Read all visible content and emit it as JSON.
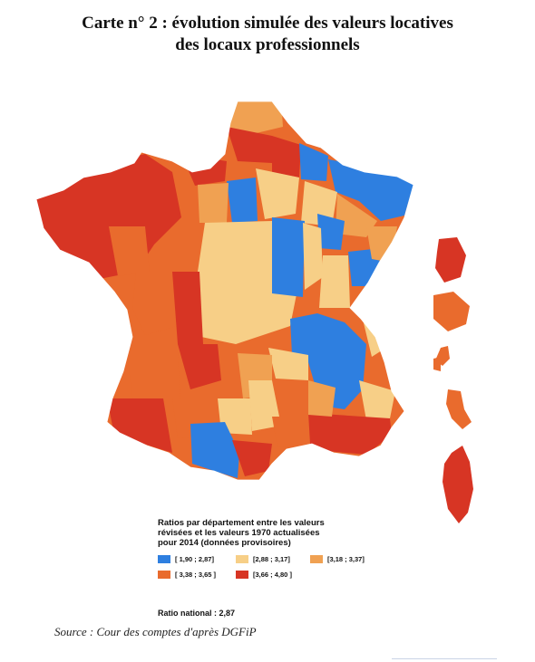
{
  "title": {
    "line1": "Carte n° 2 : évolution simulée des valeurs locatives",
    "line2": "des locaux professionnels"
  },
  "legend": {
    "title_line1": "Ratios par département entre les valeurs",
    "title_line2": "révisées et les valeurs 1970 actualisées",
    "title_line3": "pour 2014 (données provisoires)",
    "classes": [
      {
        "label": "[ 1,90 ; 2,87]",
        "color": "#2e7fe0"
      },
      {
        "label": "[2,88 ; 3,17]",
        "color": "#f7cf87"
      },
      {
        "label": "[3,18 ; 3,37]",
        "color": "#f0a152"
      },
      {
        "label": "[ 3,38 ; 3,65 ]",
        "color": "#e96b2d"
      },
      {
        "label": "[3,66 ; 4,80 ]",
        "color": "#d73524"
      }
    ]
  },
  "ratio_national": "Ratio national : 2,87",
  "source": "Source : Cour des comptes d'après DGFiP"
}
